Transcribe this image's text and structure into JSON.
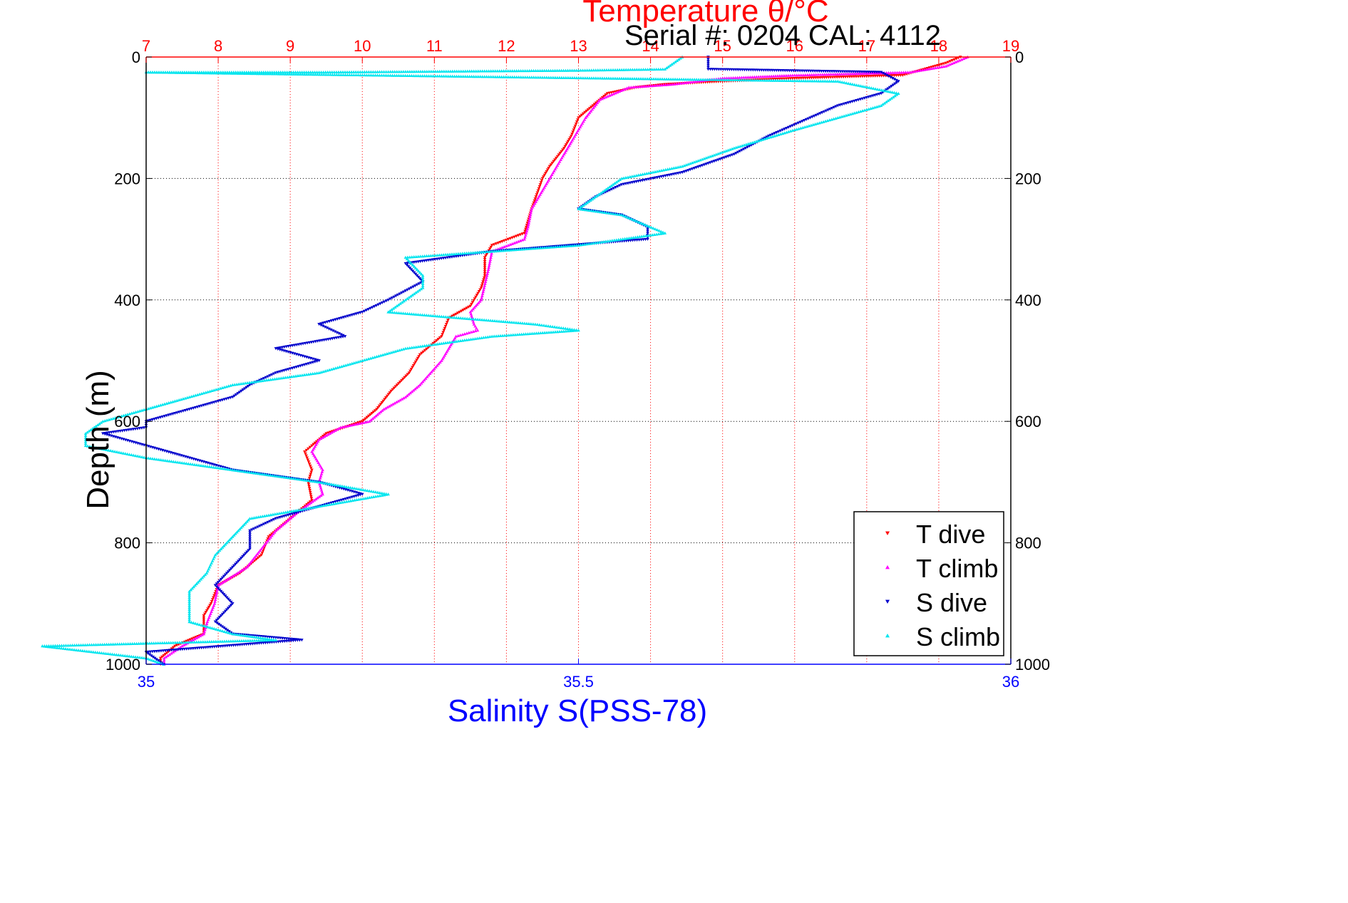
{
  "chart_data": {
    "type": "scatter",
    "title": "Temperature θ/°C",
    "subtitle": "Serial #: 0204  CAL: 4112",
    "ylabel": "Depth (m)",
    "xlabel_bottom": "Salinity S(PSS-78)",
    "y_ticks": [
      "0",
      "200",
      "400",
      "600",
      "800",
      "1000"
    ],
    "top_ticks": [
      "7",
      "8",
      "9",
      "10",
      "11",
      "12",
      "13",
      "14",
      "15",
      "16",
      "17",
      "18",
      "19"
    ],
    "bottom_ticks": [
      "35",
      "35.5",
      "36"
    ],
    "ylim": [
      0,
      1000
    ],
    "y_reversed": true,
    "temperature_xlim": [
      7,
      19
    ],
    "salinity_xlim": [
      35,
      36
    ],
    "grid": true,
    "legend_position": "bottom-right",
    "colors": {
      "temperature_axis": "#ff0000",
      "salinity_axis": "#0000ff",
      "t_dive": "#ff0000",
      "t_climb": "#ff00ff",
      "s_dive": "#0000cc",
      "s_climb": "#00e5ee",
      "grid": "#000000"
    },
    "series": [
      {
        "name": "T dive",
        "axis": "temperature",
        "marker": "triangle-down",
        "points": [
          [
            18.3,
            0
          ],
          [
            18.1,
            10
          ],
          [
            17.5,
            30
          ],
          [
            16.0,
            35
          ],
          [
            15.0,
            40
          ],
          [
            14.2,
            45
          ],
          [
            13.8,
            50
          ],
          [
            13.4,
            60
          ],
          [
            13.2,
            80
          ],
          [
            13.0,
            100
          ],
          [
            12.9,
            130
          ],
          [
            12.8,
            150
          ],
          [
            12.6,
            180
          ],
          [
            12.5,
            200
          ],
          [
            12.35,
            250
          ],
          [
            12.3,
            270
          ],
          [
            12.25,
            290
          ],
          [
            11.8,
            310
          ],
          [
            11.7,
            330
          ],
          [
            11.7,
            360
          ],
          [
            11.65,
            380
          ],
          [
            11.5,
            410
          ],
          [
            11.2,
            430
          ],
          [
            11.1,
            460
          ],
          [
            10.8,
            490
          ],
          [
            10.65,
            520
          ],
          [
            10.4,
            550
          ],
          [
            10.2,
            580
          ],
          [
            10.0,
            600
          ],
          [
            9.5,
            620
          ],
          [
            9.3,
            640
          ],
          [
            9.2,
            650
          ],
          [
            9.3,
            680
          ],
          [
            9.25,
            700
          ],
          [
            9.3,
            730
          ],
          [
            9.0,
            760
          ],
          [
            8.7,
            790
          ],
          [
            8.6,
            820
          ],
          [
            8.3,
            850
          ],
          [
            8.0,
            870
          ],
          [
            7.9,
            900
          ],
          [
            7.8,
            920
          ],
          [
            7.8,
            950
          ],
          [
            7.4,
            970
          ],
          [
            7.2,
            990
          ],
          [
            7.2,
            1000
          ]
        ]
      },
      {
        "name": "T climb",
        "axis": "temperature",
        "marker": "triangle-up",
        "points": [
          [
            18.4,
            0
          ],
          [
            18.1,
            15
          ],
          [
            17.6,
            25
          ],
          [
            16.0,
            30
          ],
          [
            15.0,
            35
          ],
          [
            14.3,
            45
          ],
          [
            13.7,
            50
          ],
          [
            13.3,
            70
          ],
          [
            13.1,
            100
          ],
          [
            12.9,
            140
          ],
          [
            12.8,
            160
          ],
          [
            12.6,
            200
          ],
          [
            12.35,
            250
          ],
          [
            12.3,
            280
          ],
          [
            12.25,
            300
          ],
          [
            11.8,
            320
          ],
          [
            11.75,
            350
          ],
          [
            11.65,
            400
          ],
          [
            11.5,
            420
          ],
          [
            11.55,
            440
          ],
          [
            11.6,
            450
          ],
          [
            11.3,
            460
          ],
          [
            11.2,
            480
          ],
          [
            11.1,
            500
          ],
          [
            10.8,
            540
          ],
          [
            10.6,
            560
          ],
          [
            10.3,
            580
          ],
          [
            10.1,
            600
          ],
          [
            9.7,
            610
          ],
          [
            9.4,
            630
          ],
          [
            9.3,
            650
          ],
          [
            9.45,
            680
          ],
          [
            9.4,
            700
          ],
          [
            9.45,
            720
          ],
          [
            9.1,
            750
          ],
          [
            8.8,
            780
          ],
          [
            8.6,
            810
          ],
          [
            8.4,
            840
          ],
          [
            8.0,
            870
          ],
          [
            7.95,
            900
          ],
          [
            7.85,
            930
          ],
          [
            7.8,
            950
          ],
          [
            7.5,
            970
          ],
          [
            7.25,
            990
          ],
          [
            7.25,
            1000
          ]
        ]
      },
      {
        "name": "S dive",
        "axis": "salinity",
        "marker": "triangle-down",
        "points": [
          [
            35.65,
            0
          ],
          [
            35.65,
            20
          ],
          [
            35.85,
            25
          ],
          [
            35.87,
            40
          ],
          [
            35.85,
            60
          ],
          [
            35.8,
            80
          ],
          [
            35.72,
            130
          ],
          [
            35.68,
            160
          ],
          [
            35.62,
            190
          ],
          [
            35.55,
            210
          ],
          [
            35.52,
            230
          ],
          [
            35.5,
            250
          ],
          [
            35.55,
            260
          ],
          [
            35.58,
            280
          ],
          [
            35.58,
            300
          ],
          [
            35.4,
            320
          ],
          [
            35.3,
            340
          ],
          [
            35.32,
            370
          ],
          [
            35.28,
            400
          ],
          [
            35.25,
            420
          ],
          [
            35.2,
            440
          ],
          [
            35.23,
            460
          ],
          [
            35.15,
            480
          ],
          [
            35.2,
            500
          ],
          [
            35.15,
            520
          ],
          [
            35.12,
            540
          ],
          [
            35.1,
            560
          ],
          [
            35.05,
            580
          ],
          [
            35.0,
            600
          ],
          [
            35.0,
            610
          ],
          [
            34.95,
            620
          ],
          [
            35.0,
            640
          ],
          [
            35.05,
            660
          ],
          [
            35.1,
            680
          ],
          [
            35.2,
            700
          ],
          [
            35.25,
            720
          ],
          [
            35.2,
            740
          ],
          [
            35.15,
            760
          ],
          [
            35.12,
            780
          ],
          [
            35.12,
            810
          ],
          [
            35.1,
            840
          ],
          [
            35.08,
            870
          ],
          [
            35.1,
            900
          ],
          [
            35.08,
            930
          ],
          [
            35.1,
            950
          ],
          [
            35.18,
            960
          ],
          [
            35.0,
            980
          ],
          [
            35.02,
            1000
          ]
        ]
      },
      {
        "name": "S climb",
        "axis": "salinity",
        "marker": "triangle-up",
        "points": [
          [
            35.62,
            0
          ],
          [
            35.6,
            20
          ],
          [
            35.5,
            22
          ],
          [
            35.3,
            24
          ],
          [
            35.2,
            25
          ],
          [
            35.0,
            25
          ],
          [
            35.8,
            40
          ],
          [
            35.87,
            60
          ],
          [
            35.85,
            80
          ],
          [
            35.75,
            120
          ],
          [
            35.68,
            150
          ],
          [
            35.62,
            180
          ],
          [
            35.55,
            200
          ],
          [
            35.52,
            230
          ],
          [
            35.5,
            250
          ],
          [
            35.55,
            260
          ],
          [
            35.6,
            290
          ],
          [
            35.5,
            310
          ],
          [
            35.4,
            320
          ],
          [
            35.3,
            330
          ],
          [
            35.32,
            360
          ],
          [
            35.32,
            380
          ],
          [
            35.3,
            400
          ],
          [
            35.28,
            420
          ],
          [
            35.45,
            440
          ],
          [
            35.5,
            450
          ],
          [
            35.4,
            460
          ],
          [
            35.3,
            480
          ],
          [
            35.25,
            500
          ],
          [
            35.2,
            520
          ],
          [
            35.1,
            540
          ],
          [
            35.05,
            560
          ],
          [
            35.0,
            580
          ],
          [
            34.95,
            600
          ],
          [
            34.93,
            620
          ],
          [
            34.93,
            640
          ],
          [
            35.0,
            660
          ],
          [
            35.1,
            680
          ],
          [
            35.2,
            700
          ],
          [
            35.28,
            720
          ],
          [
            35.2,
            740
          ],
          [
            35.12,
            760
          ],
          [
            35.1,
            790
          ],
          [
            35.08,
            820
          ],
          [
            35.07,
            850
          ],
          [
            35.05,
            880
          ],
          [
            35.05,
            910
          ],
          [
            35.05,
            930
          ],
          [
            35.1,
            950
          ],
          [
            35.15,
            960
          ],
          [
            34.88,
            970
          ],
          [
            35.0,
            990
          ],
          [
            35.02,
            1000
          ]
        ]
      }
    ]
  }
}
